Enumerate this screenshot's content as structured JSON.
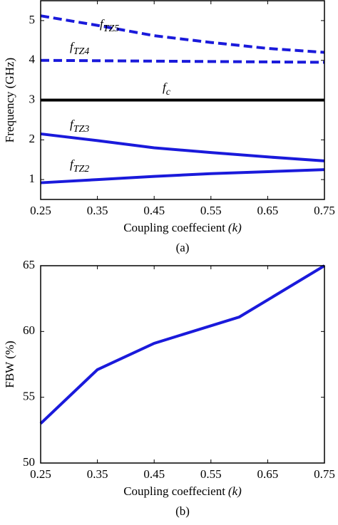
{
  "chart_data": [
    {
      "type": "line",
      "caption": "(a)",
      "xlabel": "Coupling coeffecient",
      "xlabel_var": "(k)",
      "ylabel": "Frequency (GHz)",
      "x": [
        0.25,
        0.35,
        0.45,
        0.55,
        0.65,
        0.75
      ],
      "xlim": [
        0.25,
        0.75
      ],
      "xticks": [
        0.25,
        0.35,
        0.45,
        0.55,
        0.65,
        0.75
      ],
      "ylim": [
        0.5,
        5.5
      ],
      "yticks": [
        1,
        2,
        3,
        4,
        5
      ],
      "series": [
        {
          "name": "f",
          "subscript": "TZ5",
          "color": "#1a1adb",
          "dashed": true,
          "values": [
            5.12,
            4.88,
            4.62,
            4.45,
            4.3,
            4.2
          ]
        },
        {
          "name": "f",
          "subscript": "TZ4",
          "color": "#1a1adb",
          "dashed": true,
          "values": [
            4.0,
            3.99,
            3.98,
            3.97,
            3.96,
            3.95
          ]
        },
        {
          "name": "f",
          "subscript": "c",
          "color": "#000000",
          "dashed": false,
          "values": [
            3.0,
            3.0,
            3.0,
            3.0,
            3.0,
            3.0
          ]
        },
        {
          "name": "f",
          "subscript": "TZ3",
          "color": "#1a1adb",
          "dashed": false,
          "values": [
            2.15,
            1.98,
            1.8,
            1.68,
            1.57,
            1.47
          ]
        },
        {
          "name": "f",
          "subscript": "TZ2",
          "color": "#1a1adb",
          "dashed": false,
          "values": [
            0.92,
            1.0,
            1.08,
            1.15,
            1.2,
            1.25
          ]
        }
      ]
    },
    {
      "type": "line",
      "caption": "(b)",
      "xlabel": "Coupling coeffecient",
      "xlabel_var": "(k)",
      "ylabel": "FBW (%)",
      "x": [
        0.25,
        0.35,
        0.45,
        0.6,
        0.75
      ],
      "xlim": [
        0.25,
        0.75
      ],
      "xticks": [
        0.25,
        0.35,
        0.45,
        0.55,
        0.65,
        0.75
      ],
      "ylim": [
        50,
        65
      ],
      "yticks": [
        50,
        55,
        60,
        65
      ],
      "series": [
        {
          "color": "#1a1adb",
          "dashed": false,
          "values": [
            53,
            57.1,
            59.1,
            61.1,
            65
          ]
        }
      ]
    }
  ]
}
